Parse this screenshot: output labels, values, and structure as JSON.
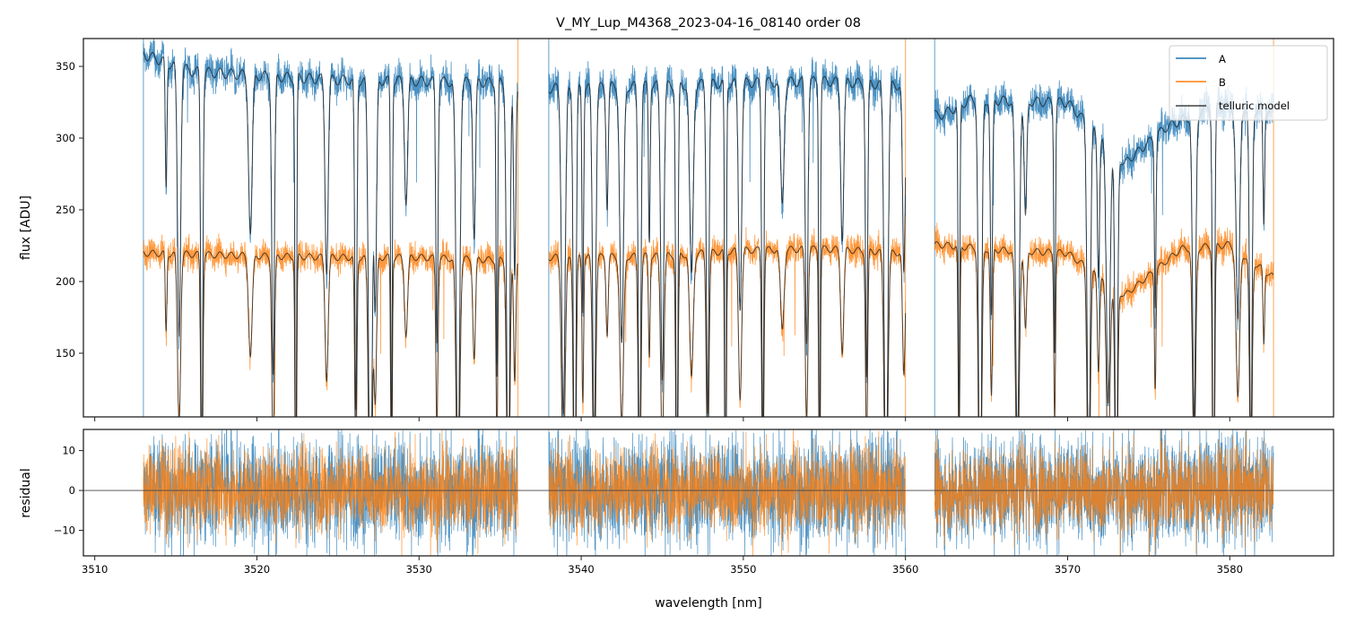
{
  "chart_data": [
    {
      "panel": "flux",
      "type": "line",
      "title": "V_MY_Lup_M4368_2023-04-16_08140  order 08",
      "xlabel": "",
      "ylabel": "flux [ADU]",
      "xlim": [
        3509.3,
        3586.4
      ],
      "ylim": [
        105.6,
        369.4
      ],
      "yticks": [
        150,
        200,
        250,
        300,
        350
      ],
      "ytick_labels": [
        "150",
        "200",
        "250",
        "300",
        "350"
      ],
      "xticks": [
        3510,
        3520,
        3530,
        3540,
        3550,
        3560,
        3570,
        3580
      ],
      "grid": false,
      "legend": {
        "placement": "top-right",
        "entries": [
          {
            "label": "A",
            "color": "#1f77b4"
          },
          {
            "label": "B",
            "color": "#ff7f0e"
          },
          {
            "label": "telluric model",
            "color": "#404040"
          }
        ]
      },
      "segments_nm": [
        [
          3513.0,
          3536.1
        ],
        [
          3538.0,
          3560.0
        ],
        [
          3561.8,
          3582.7
        ]
      ],
      "series": [
        {
          "name": "A",
          "color": "#1f77b4",
          "continuum": [
            {
              "x": 3513.0,
              "y": 362
            },
            {
              "x": 3516.0,
              "y": 350
            },
            {
              "x": 3520.0,
              "y": 347
            },
            {
              "x": 3525.0,
              "y": 344
            },
            {
              "x": 3530.0,
              "y": 343
            },
            {
              "x": 3535.0,
              "y": 342
            },
            {
              "x": 3538.0,
              "y": 338
            },
            {
              "x": 3545.0,
              "y": 340
            },
            {
              "x": 3550.0,
              "y": 342
            },
            {
              "x": 3555.0,
              "y": 343
            },
            {
              "x": 3560.0,
              "y": 340
            },
            {
              "x": 3562.0,
              "y": 318
            },
            {
              "x": 3564.0,
              "y": 330
            },
            {
              "x": 3570.0,
              "y": 328
            },
            {
              "x": 3573.5,
              "y": 285
            },
            {
              "x": 3576.0,
              "y": 310
            },
            {
              "x": 3579.0,
              "y": 326
            },
            {
              "x": 3582.7,
              "y": 322
            }
          ]
        },
        {
          "name": "B",
          "color": "#ff7f0e",
          "continuum": [
            {
              "x": 3513.0,
              "y": 222
            },
            {
              "x": 3520.0,
              "y": 220
            },
            {
              "x": 3525.0,
              "y": 219
            },
            {
              "x": 3530.0,
              "y": 219
            },
            {
              "x": 3535.0,
              "y": 217
            },
            {
              "x": 3538.0,
              "y": 219
            },
            {
              "x": 3545.0,
              "y": 220
            },
            {
              "x": 3550.0,
              "y": 224
            },
            {
              "x": 3555.0,
              "y": 225
            },
            {
              "x": 3560.0,
              "y": 222
            },
            {
              "x": 3562.0,
              "y": 228
            },
            {
              "x": 3566.0,
              "y": 224
            },
            {
              "x": 3570.0,
              "y": 222
            },
            {
              "x": 3573.5,
              "y": 192
            },
            {
              "x": 3577.0,
              "y": 225
            },
            {
              "x": 3580.0,
              "y": 228
            },
            {
              "x": 3582.7,
              "y": 205
            }
          ]
        }
      ],
      "absorption_lines_nm": [
        3514.4,
        3515.2,
        3516.6,
        3519.6,
        3521.0,
        3522.4,
        3524.3,
        3526.1,
        3527.0,
        3527.3,
        3528.3,
        3529.2,
        3531.1,
        3532.4,
        3533.4,
        3534.8,
        3535.5,
        3535.9,
        3538.9,
        3539.6,
        3540.1,
        3540.8,
        3541.6,
        3542.5,
        3543.6,
        3544.2,
        3545.0,
        3545.9,
        3546.8,
        3547.8,
        3548.9,
        3549.8,
        3551.2,
        3552.4,
        3553.9,
        3554.7,
        3556.1,
        3557.6,
        3558.8,
        3559.9,
        3563.3,
        3564.6,
        3565.3,
        3566.9,
        3567.4,
        3569.2,
        3571.3,
        3571.9,
        3572.5,
        3573.0,
        3575.4,
        3577.8,
        3579.0,
        3580.5,
        3581.3,
        3582.1
      ]
    },
    {
      "panel": "residual",
      "type": "line",
      "title": "",
      "xlabel": "wavelength [nm]",
      "ylabel": "residual",
      "xlim": [
        3509.3,
        3586.4
      ],
      "ylim": [
        -16.4,
        15.3
      ],
      "yticks": [
        -10,
        0,
        10
      ],
      "ytick_labels": [
        "−10",
        "0",
        "10"
      ],
      "xticks": [
        3510,
        3520,
        3530,
        3540,
        3550,
        3560,
        3570,
        3580
      ],
      "xtick_labels": [
        "3510",
        "3520",
        "3530",
        "3540",
        "3550",
        "3560",
        "3570",
        "3580"
      ],
      "zero_line": 0,
      "noise_rms": {
        "A": 6,
        "B": 5
      },
      "series": [
        {
          "name": "A",
          "color": "#1f77b4"
        },
        {
          "name": "B",
          "color": "#ff7f0e"
        }
      ]
    }
  ]
}
